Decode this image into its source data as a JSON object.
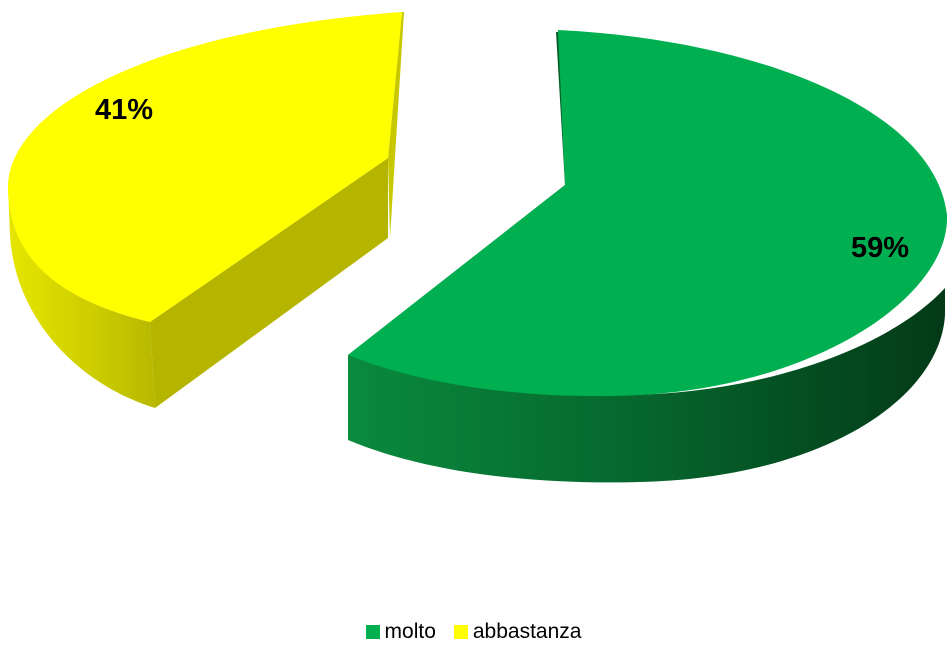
{
  "chart_data": {
    "type": "pie",
    "style": "3d-exploded",
    "categories": [
      "molto",
      "abbastanza"
    ],
    "values": [
      59,
      41
    ],
    "value_labels": [
      "59%",
      "41%"
    ],
    "colors": [
      "#00B050",
      "#FFFF00"
    ],
    "legend": {
      "position": "bottom",
      "entries": [
        "molto",
        "abbastanza"
      ]
    }
  }
}
